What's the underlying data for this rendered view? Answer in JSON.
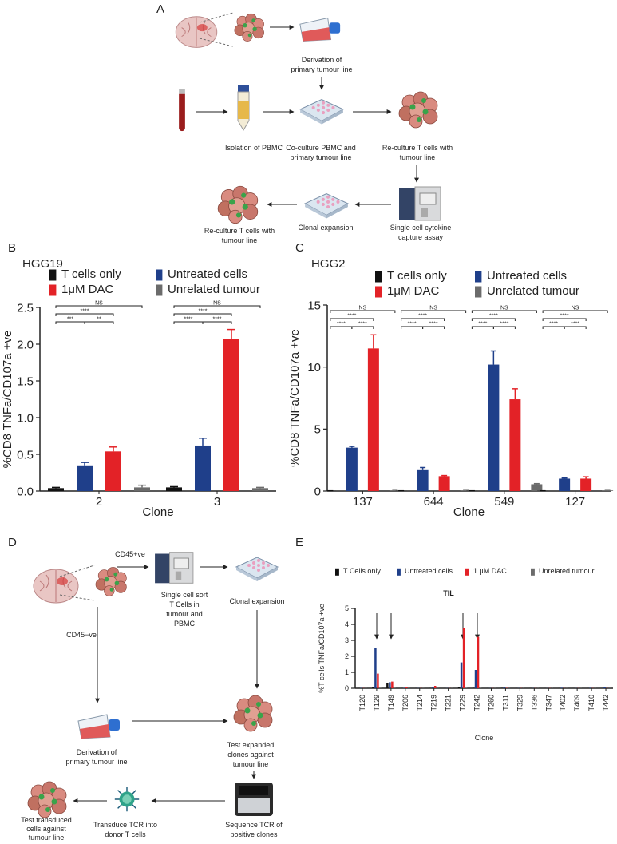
{
  "panel_a": {
    "label": "A",
    "steps": [
      [
        "Derivation of",
        "primary tumour line"
      ],
      [
        "Isolation of PBMC"
      ],
      [
        "Co-culture PBMC and",
        "primary tumour line"
      ],
      [
        "Re-culture T cells with",
        "tumour line"
      ],
      [
        "Single cell cytokine",
        "capture assay"
      ],
      [
        "Clonal expansion"
      ],
      [
        "Re-culture T cells with",
        "tumour line"
      ]
    ]
  },
  "panel_d": {
    "label": "D",
    "gates": [
      "CD45+ve",
      "CD45−ve"
    ],
    "steps": [
      [
        "Single cell sort",
        "T Cells in",
        "tumour and",
        "PBMC"
      ],
      [
        "Clonal expansion"
      ],
      [
        "Derivation of",
        "primary tumour line"
      ],
      [
        "Test expanded",
        "clones against",
        "tumour line"
      ],
      [
        "Sequence TCR of",
        "positive clones"
      ],
      [
        "Transduce TCR into",
        "donor T cells"
      ],
      [
        "Test transduced",
        "cells against",
        "tumour line"
      ]
    ]
  },
  "chart_data": [
    {
      "type": "bar",
      "panel": "B",
      "title": "HGG19",
      "categories": [
        "2",
        "3"
      ],
      "series": [
        {
          "name": "T cells only",
          "color": "#111111",
          "values": [
            0.04,
            0.05
          ],
          "errors": [
            0.01,
            0.01
          ]
        },
        {
          "name": "Untreated cells",
          "color": "#1f3f8a",
          "values": [
            0.35,
            0.62
          ],
          "errors": [
            0.04,
            0.1
          ]
        },
        {
          "name": "1μM DAC",
          "color": "#e32227",
          "values": [
            0.54,
            2.07
          ],
          "errors": [
            0.06,
            0.13
          ]
        },
        {
          "name": "Unrelated tumour",
          "color": "#6b6b6b",
          "values": [
            0.05,
            0.04
          ],
          "errors": [
            0.03,
            0.01
          ]
        }
      ],
      "annotations": [
        [
          "NS",
          "****",
          "***",
          "**"
        ],
        [
          "NS",
          "****",
          "****",
          "****"
        ]
      ],
      "ylim": [
        0,
        2.5
      ],
      "yticks": [
        {
          "value": 0,
          "label": "0.0"
        },
        0.5,
        {
          "value": 1,
          "label": "1.0"
        },
        1.5,
        {
          "value": 2,
          "label": "2.0"
        },
        2.5
      ],
      "xlabel": "Clone",
      "ylabel": "%CD8 TNFa/CD107a +ve"
    },
    {
      "type": "bar",
      "panel": "C",
      "title": "HGG2",
      "categories": [
        "137",
        "644",
        "549",
        "127"
      ],
      "series": [
        {
          "name": "T cells only",
          "color": "#111111",
          "values": [
            0.02,
            0.02,
            0.02,
            0.02
          ],
          "errors": [
            0,
            0,
            0,
            0
          ]
        },
        {
          "name": "Untreated cells",
          "color": "#1f3f8a",
          "values": [
            3.5,
            1.75,
            10.2,
            1.0
          ],
          "errors": [
            0.1,
            0.15,
            1.1,
            0.05
          ]
        },
        {
          "name": "1μM DAC",
          "color": "#e32227",
          "values": [
            11.5,
            1.2,
            7.4,
            1.0
          ],
          "errors": [
            1.1,
            0.05,
            0.85,
            0.15
          ]
        },
        {
          "name": "Unrelated tumour",
          "color": "#6b6b6b",
          "values": [
            0.05,
            0.05,
            0.55,
            0.05
          ],
          "errors": [
            0,
            0,
            0.05,
            0
          ]
        }
      ],
      "annotations": [
        [
          "NS",
          "****",
          "****",
          "****"
        ],
        [
          "NS",
          "****",
          "****",
          "****"
        ],
        [
          "NS",
          "****",
          "****",
          "****"
        ],
        [
          "NS",
          "****",
          "****",
          "****"
        ]
      ],
      "ylim": [
        0,
        15
      ],
      "yticks": [
        0,
        5,
        10,
        15
      ],
      "xlabel": "Clone",
      "ylabel": "%CD8 TNFa/CD107a +ve"
    },
    {
      "type": "bar",
      "panel": "E",
      "title": "TIL",
      "categories": [
        "T120",
        "T129",
        "T149",
        "T206",
        "T214",
        "T219",
        "T221",
        "T229",
        "T242",
        "T260",
        "T311",
        "T329",
        "T336",
        "T347",
        "T402",
        "T409",
        "T410",
        "T442"
      ],
      "series": [
        {
          "name": "T Cells only",
          "color": "#111111",
          "values": [
            0.02,
            0.05,
            0.35,
            0.02,
            0.01,
            0.02,
            0.01,
            0.05,
            0.03,
            0.01,
            0.03,
            0.01,
            0.01,
            0.01,
            0.01,
            0.01,
            0.01,
            0.01
          ]
        },
        {
          "name": "Untreated cells",
          "color": "#1f3f8a",
          "values": [
            0.02,
            2.55,
            0.38,
            0.02,
            0.01,
            0.08,
            0.01,
            1.62,
            1.15,
            0.01,
            0.08,
            0.01,
            0.01,
            0.01,
            0.03,
            0.01,
            0.03,
            0.08
          ]
        },
        {
          "name": "1 µM DAC",
          "color": "#e32227",
          "values": [
            0.01,
            0.92,
            0.42,
            0.05,
            0.01,
            0.15,
            0.01,
            3.8,
            3.22,
            0.01,
            0.02,
            0.01,
            0.01,
            0.01,
            0.01,
            0.01,
            0.01,
            0.01
          ]
        },
        {
          "name": "Unrelated tumour",
          "color": "#6b6b6b",
          "values": [
            0.01,
            0.02,
            0.02,
            0.01,
            0.01,
            0.01,
            0.01,
            0.03,
            0.02,
            0.01,
            0.01,
            0.01,
            0.01,
            0.01,
            0.01,
            0.01,
            0.01,
            0.01
          ]
        }
      ],
      "ylim": [
        0,
        5
      ],
      "yticks": [
        0,
        1,
        2,
        3,
        4,
        5
      ],
      "xlabel": "Clone",
      "ylabel": "%T cells TNFa/CD107a +ve"
    }
  ]
}
